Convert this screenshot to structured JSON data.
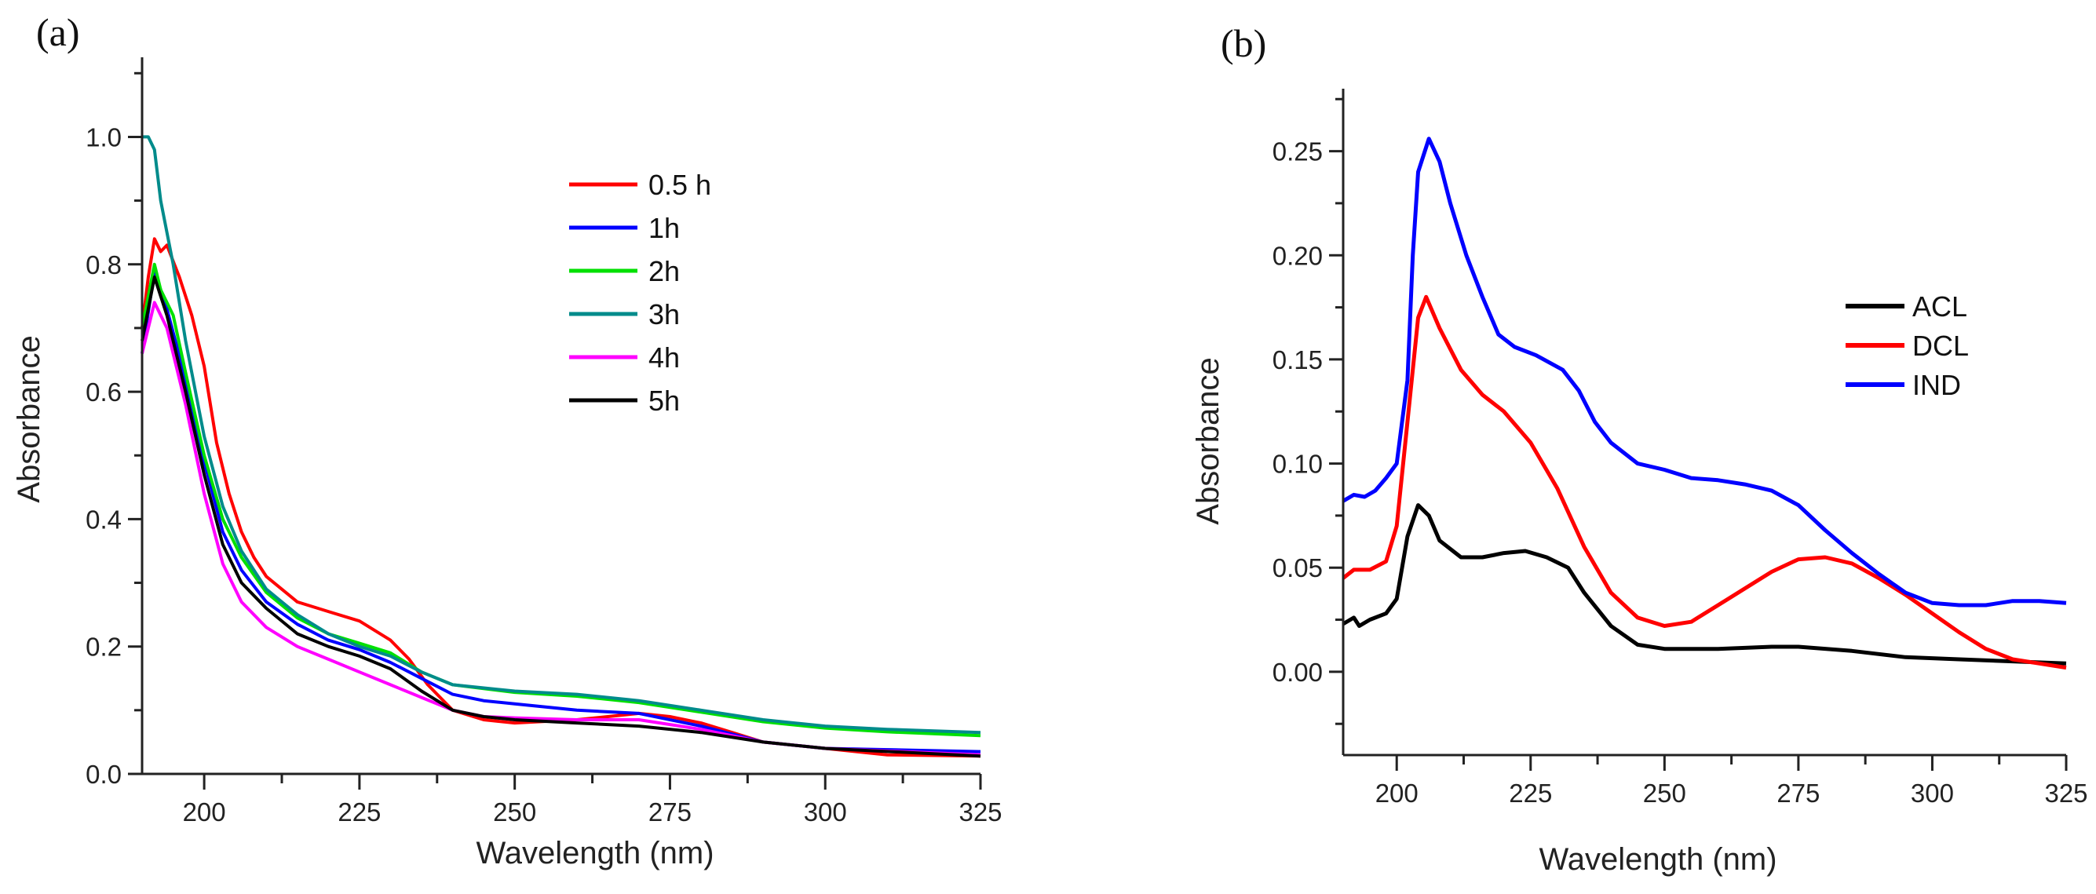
{
  "chart_data": [
    {
      "panel_label": "(a)",
      "type": "line",
      "title": "",
      "xlabel": "Wavelength (nm)",
      "ylabel": "Absorbance",
      "xlim": [
        190,
        325
      ],
      "ylim": [
        0,
        1.125
      ],
      "xticks": [
        200,
        225,
        250,
        275,
        300,
        325
      ],
      "xtick_labels": [
        "200",
        "225",
        "250",
        "275",
        "300",
        "325"
      ],
      "xminor_step": 12.5,
      "yticks": [
        0,
        0.2,
        0.4,
        0.6,
        0.8,
        1.0
      ],
      "ytick_labels": [
        "0.0",
        "0.2",
        "0.4",
        "0.6",
        "0.8",
        "1.0"
      ],
      "yminor_step": 0.1,
      "grid": false,
      "legend_position": "top-right",
      "series": [
        {
          "name": "0.5 h",
          "color": "#ff0000",
          "x": [
            190,
            191,
            192,
            193,
            194,
            196,
            198,
            200,
            202,
            204,
            206,
            208,
            210,
            215,
            220,
            225,
            230,
            233,
            236,
            240,
            245,
            250,
            260,
            265,
            270,
            275,
            280,
            285,
            290,
            300,
            310,
            325
          ],
          "y": [
            0.7,
            0.78,
            0.84,
            0.82,
            0.83,
            0.78,
            0.72,
            0.64,
            0.52,
            0.44,
            0.38,
            0.34,
            0.31,
            0.27,
            0.255,
            0.24,
            0.21,
            0.18,
            0.14,
            0.1,
            0.085,
            0.08,
            0.085,
            0.09,
            0.095,
            0.09,
            0.08,
            0.065,
            0.05,
            0.04,
            0.03,
            0.028
          ]
        },
        {
          "name": "1h",
          "color": "#0000ff",
          "x": [
            190,
            192,
            194,
            197,
            200,
            203,
            206,
            210,
            215,
            220,
            225,
            230,
            235,
            240,
            245,
            250,
            260,
            270,
            280,
            290,
            300,
            325
          ],
          "y": [
            0.66,
            0.79,
            0.73,
            0.62,
            0.49,
            0.38,
            0.32,
            0.27,
            0.235,
            0.21,
            0.195,
            0.175,
            0.15,
            0.125,
            0.115,
            0.11,
            0.1,
            0.095,
            0.075,
            0.05,
            0.04,
            0.035
          ]
        },
        {
          "name": "2h",
          "color": "#00e000",
          "x": [
            190,
            192,
            193,
            195,
            197,
            200,
            203,
            206,
            210,
            215,
            220,
            225,
            230,
            235,
            240,
            250,
            260,
            270,
            280,
            290,
            300,
            310,
            325
          ],
          "y": [
            0.7,
            0.8,
            0.76,
            0.72,
            0.63,
            0.5,
            0.4,
            0.34,
            0.285,
            0.245,
            0.22,
            0.205,
            0.19,
            0.16,
            0.14,
            0.128,
            0.122,
            0.112,
            0.097,
            0.082,
            0.072,
            0.066,
            0.06
          ]
        },
        {
          "name": "3h",
          "color": "#008b8b",
          "x": [
            190,
            191,
            192,
            193,
            195,
            197,
            200,
            203,
            206,
            210,
            215,
            220,
            225,
            230,
            235,
            240,
            250,
            260,
            270,
            280,
            290,
            300,
            310,
            325
          ],
          "y": [
            1.0,
            1.0,
            0.98,
            0.9,
            0.8,
            0.68,
            0.53,
            0.42,
            0.35,
            0.29,
            0.25,
            0.22,
            0.2,
            0.185,
            0.16,
            0.14,
            0.13,
            0.125,
            0.115,
            0.1,
            0.085,
            0.075,
            0.07,
            0.065
          ]
        },
        {
          "name": "4h",
          "color": "#ff00ff",
          "x": [
            190,
            192,
            194,
            197,
            200,
            203,
            206,
            210,
            215,
            220,
            225,
            230,
            235,
            240,
            245,
            250,
            260,
            270,
            280,
            290,
            300,
            325
          ],
          "y": [
            0.66,
            0.74,
            0.7,
            0.58,
            0.44,
            0.33,
            0.27,
            0.23,
            0.2,
            0.18,
            0.16,
            0.14,
            0.12,
            0.1,
            0.09,
            0.088,
            0.085,
            0.085,
            0.07,
            0.05,
            0.04,
            0.03
          ]
        },
        {
          "name": "5h",
          "color": "#000000",
          "x": [
            190,
            192,
            194,
            197,
            200,
            203,
            206,
            210,
            215,
            220,
            225,
            230,
            235,
            240,
            245,
            250,
            260,
            270,
            280,
            290,
            300,
            325
          ],
          "y": [
            0.68,
            0.78,
            0.72,
            0.6,
            0.47,
            0.36,
            0.3,
            0.26,
            0.22,
            0.2,
            0.185,
            0.165,
            0.13,
            0.1,
            0.09,
            0.085,
            0.08,
            0.075,
            0.065,
            0.05,
            0.04,
            0.028
          ]
        }
      ]
    },
    {
      "panel_label": "(b)",
      "type": "line",
      "title": "",
      "xlabel": "Wavelength (nm)",
      "ylabel": "Absorbance",
      "xlim": [
        190,
        325
      ],
      "ylim": [
        -0.04,
        0.28
      ],
      "xticks": [
        200,
        225,
        250,
        275,
        300,
        325
      ],
      "xtick_labels": [
        "200",
        "225",
        "250",
        "275",
        "300",
        "325"
      ],
      "xminor_step": 12.5,
      "yticks": [
        0,
        0.05,
        0.1,
        0.15,
        0.2,
        0.25
      ],
      "ytick_labels": [
        "0.00",
        "0.05",
        "0.10",
        "0.15",
        "0.20",
        "0.25"
      ],
      "yminor_step": 0.025,
      "grid": false,
      "legend_position": "right",
      "series": [
        {
          "name": "ACL",
          "color": "#000000",
          "x": [
            190,
            192,
            193,
            195,
            198,
            200,
            202,
            204,
            206,
            208,
            212,
            216,
            220,
            224,
            228,
            232,
            235,
            240,
            245,
            250,
            260,
            270,
            275,
            285,
            295,
            305,
            315,
            325
          ],
          "y": [
            0.023,
            0.026,
            0.022,
            0.025,
            0.028,
            0.035,
            0.065,
            0.08,
            0.075,
            0.063,
            0.055,
            0.055,
            0.057,
            0.058,
            0.055,
            0.05,
            0.038,
            0.022,
            0.013,
            0.011,
            0.011,
            0.012,
            0.012,
            0.01,
            0.007,
            0.006,
            0.005,
            0.004
          ]
        },
        {
          "name": "DCL",
          "color": "#ff0000",
          "x": [
            190,
            192,
            195,
            198,
            200,
            202,
            204,
            205.5,
            208,
            212,
            216,
            220,
            225,
            230,
            235,
            240,
            245,
            250,
            255,
            260,
            265,
            270,
            275,
            280,
            285,
            290,
            295,
            300,
            305,
            310,
            315,
            320,
            325
          ],
          "y": [
            0.045,
            0.049,
            0.049,
            0.053,
            0.07,
            0.12,
            0.17,
            0.18,
            0.165,
            0.145,
            0.133,
            0.125,
            0.11,
            0.088,
            0.06,
            0.038,
            0.026,
            0.022,
            0.024,
            0.032,
            0.04,
            0.048,
            0.054,
            0.055,
            0.052,
            0.045,
            0.037,
            0.028,
            0.019,
            0.011,
            0.006,
            0.004,
            0.002
          ]
        },
        {
          "name": "IND",
          "color": "#0000ff",
          "x": [
            190,
            192,
            194,
            196,
            198,
            200,
            202,
            203,
            204,
            206,
            208,
            210,
            213,
            216,
            219,
            222,
            226,
            231,
            234,
            237,
            240,
            245,
            250,
            255,
            260,
            265,
            270,
            275,
            280,
            285,
            290,
            295,
            300,
            305,
            310,
            315,
            320,
            325
          ],
          "y": [
            0.082,
            0.085,
            0.084,
            0.087,
            0.093,
            0.1,
            0.14,
            0.2,
            0.24,
            0.256,
            0.245,
            0.225,
            0.2,
            0.18,
            0.162,
            0.156,
            0.152,
            0.145,
            0.135,
            0.12,
            0.11,
            0.1,
            0.097,
            0.093,
            0.092,
            0.09,
            0.087,
            0.08,
            0.068,
            0.057,
            0.047,
            0.038,
            0.033,
            0.032,
            0.032,
            0.034,
            0.034,
            0.033
          ]
        }
      ]
    }
  ]
}
